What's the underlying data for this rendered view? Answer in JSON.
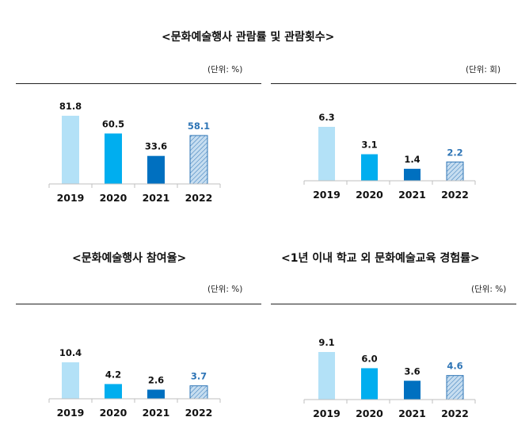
{
  "figure": {
    "main_title": "<문화예술행사 관람률 및 관람횟수>",
    "attendance_unit": "(단위: %)",
    "count_unit": "(단위: 회)",
    "participation_title": "<문화예술행사 참여율>",
    "participation_unit": "(단위: %)",
    "education_title": "<1년 이내 학교 외 문화예술교육 경험률>",
    "education_unit": "(단위: %)"
  },
  "colors": {
    "c2019": "#b3e1f7",
    "c2020": "#00aeef",
    "c2021": "#0070c0",
    "c2022_fill": "#c6ddf0",
    "c2022_stroke": "#2e75b6",
    "c2022_label": "#2e75b6",
    "axis": "#bfbfbf"
  },
  "chart_data": [
    {
      "type": "bar",
      "title": "<문화예술행사 관람률 및 관람횟수>",
      "unit": "(단위: %)",
      "categories": [
        "2019",
        "2020",
        "2021",
        "2022"
      ],
      "values": [
        81.8,
        60.5,
        33.6,
        58.1
      ],
      "labels": [
        "81.8",
        "60.5",
        "33.6",
        "58.1"
      ],
      "ylim": [
        0,
        90
      ]
    },
    {
      "type": "bar",
      "unit": "(단위: 회)",
      "categories": [
        "2019",
        "2020",
        "2021",
        "2022"
      ],
      "values": [
        6.3,
        3.1,
        1.4,
        2.2
      ],
      "labels": [
        "6.3",
        "3.1",
        "1.4",
        "2.2"
      ],
      "ylim": [
        0,
        7
      ]
    },
    {
      "type": "bar",
      "title": "<문화예술행사 참여율>",
      "unit": "(단위: %)",
      "categories": [
        "2019",
        "2020",
        "2021",
        "2022"
      ],
      "values": [
        10.4,
        4.2,
        2.6,
        3.7
      ],
      "labels": [
        "10.4",
        "4.2",
        "2.6",
        "3.7"
      ],
      "ylim": [
        0,
        11.5
      ]
    },
    {
      "type": "bar",
      "title": "<1년 이내 학교 외 문화예술교육 경험률>",
      "unit": "(단위: %)",
      "categories": [
        "2019",
        "2020",
        "2021",
        "2022"
      ],
      "values": [
        9.1,
        6.0,
        3.6,
        4.6
      ],
      "labels": [
        "9.1",
        "6.0",
        "3.6",
        "4.6"
      ],
      "ylim": [
        0,
        10
      ]
    }
  ]
}
